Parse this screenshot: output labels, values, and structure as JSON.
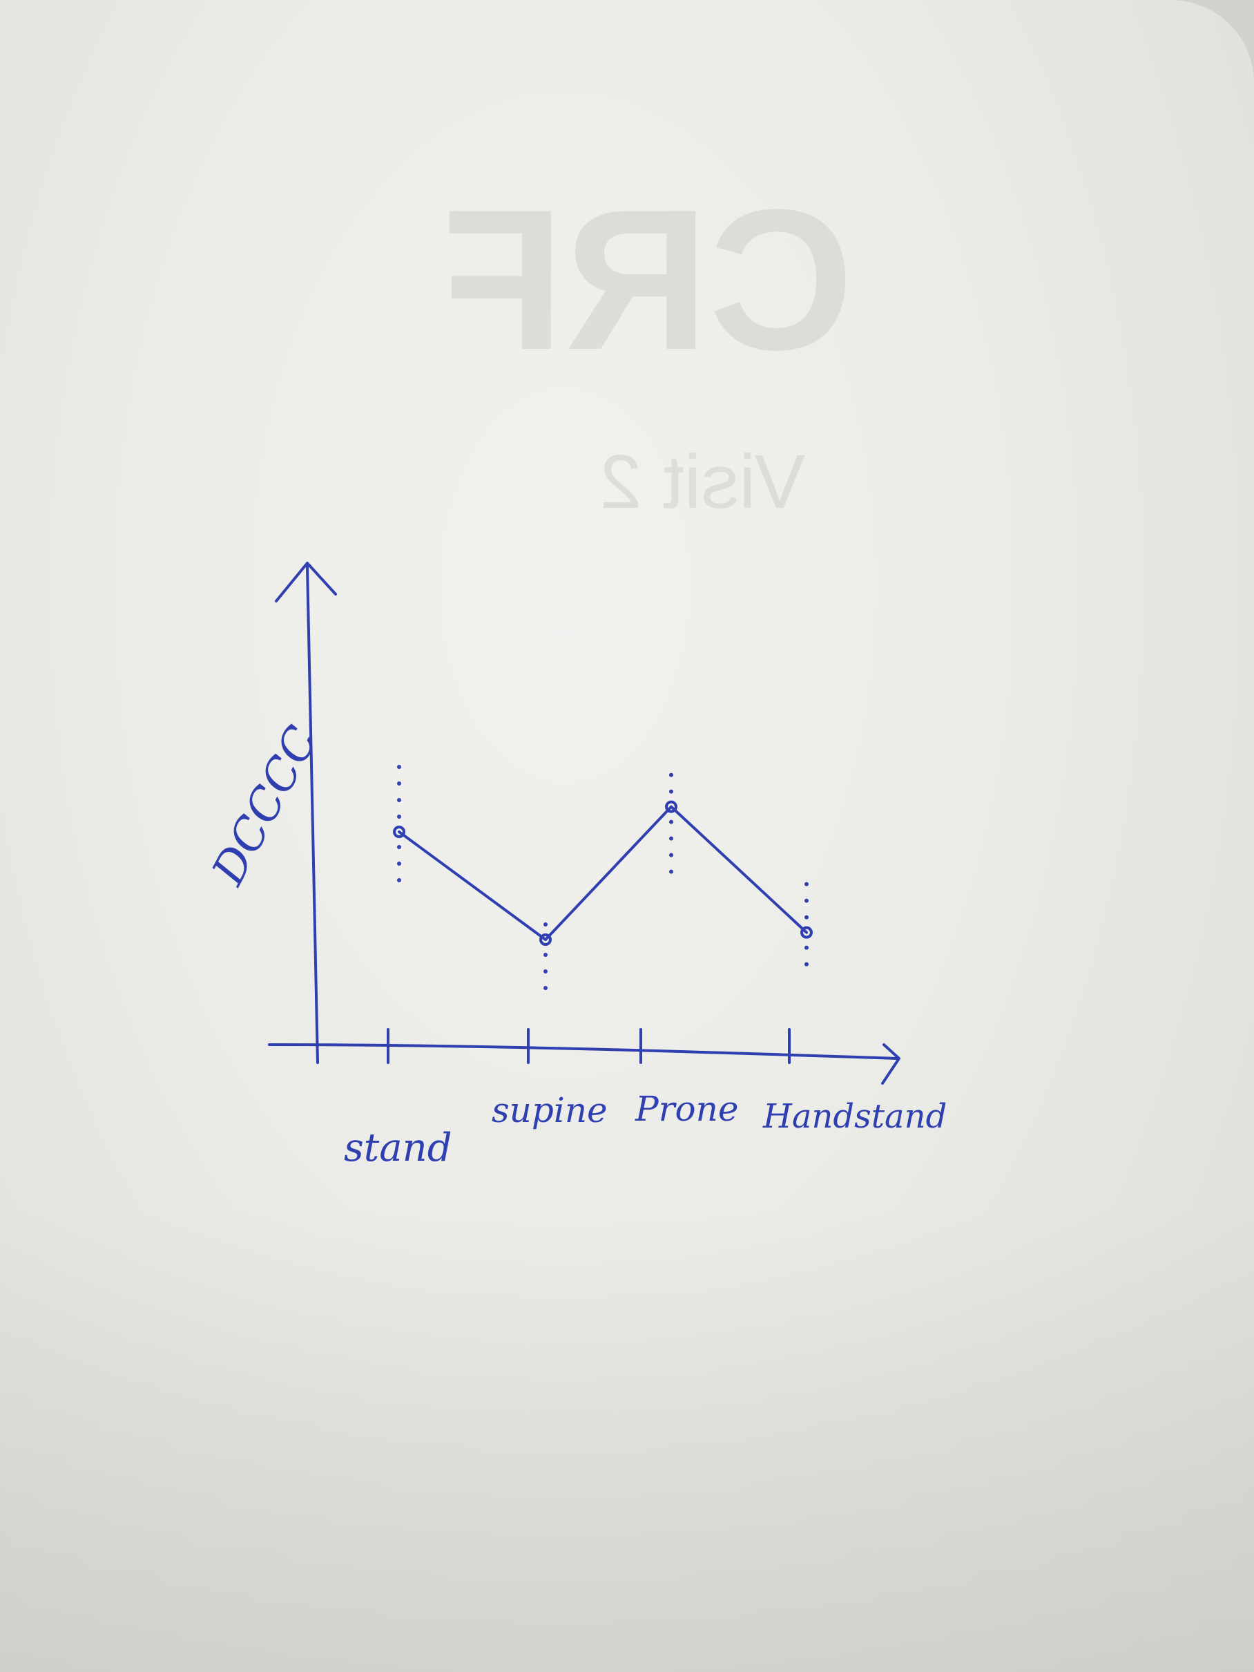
{
  "bleed_through": {
    "title": "CRF",
    "subtitle": "Visit 2"
  },
  "chart_data": {
    "type": "line",
    "title": "",
    "xlabel": "",
    "ylabel": "DCCCC",
    "categories": [
      "stand",
      "supine",
      "Prone",
      "Handstand"
    ],
    "values": [
      0.55,
      0.25,
      0.62,
      0.27
    ],
    "error_spread": [
      [
        0.62,
        0.5
      ],
      [
        0.28,
        0.45
      ],
      [
        0.42,
        0.6
      ],
      [
        0.45,
        0.43
      ]
    ],
    "ylim": [
      0,
      1
    ],
    "grid": false,
    "legend": "none",
    "line_color": "#2f3fb0"
  }
}
